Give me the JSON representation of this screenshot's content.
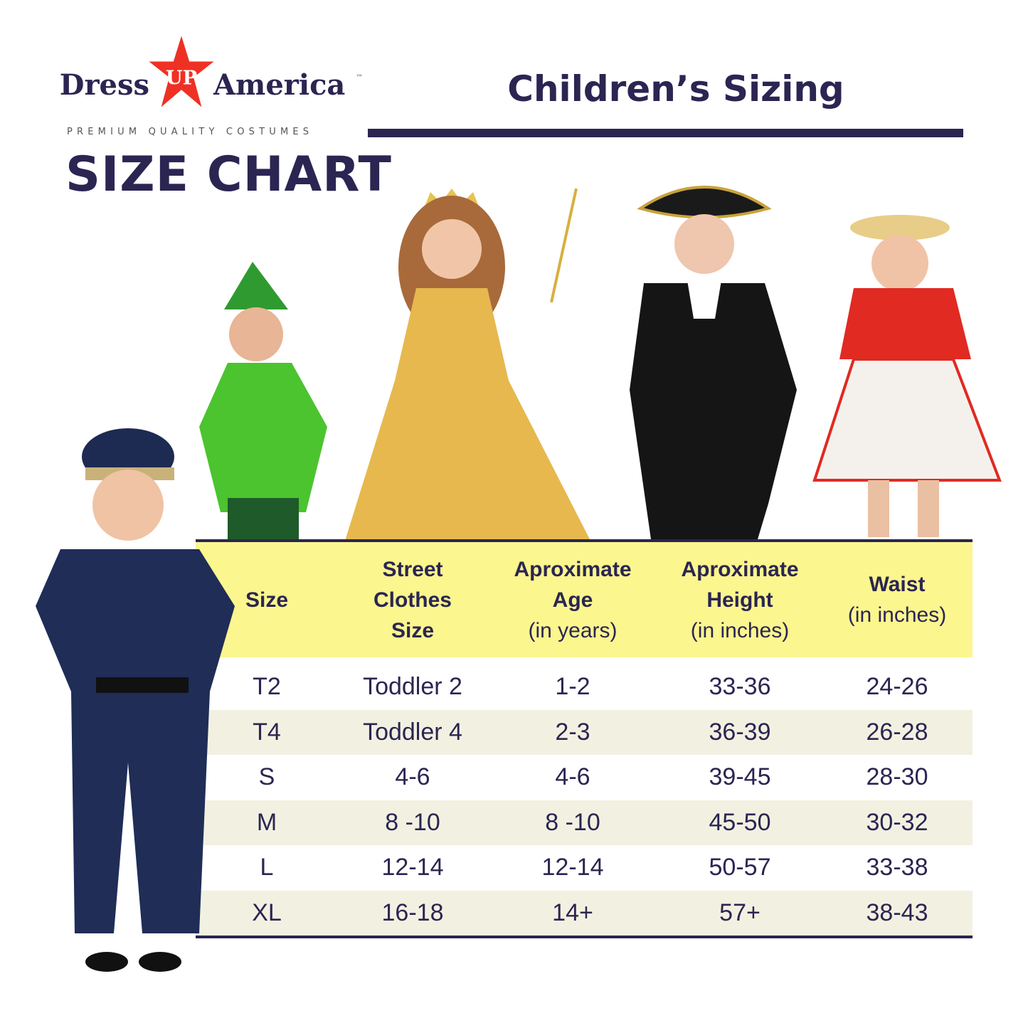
{
  "brand": {
    "word1": "Dress",
    "star_text": "UP",
    "word2": "America",
    "tm": "™",
    "tagline": "PREMIUM QUALITY COSTUMES",
    "colors": {
      "navy": "#2b2552",
      "red": "#ee3124"
    }
  },
  "heading": "SIZE CHART",
  "title": "Children’s Sizing",
  "table": {
    "header_bg": "#fbf68e",
    "columns": [
      {
        "bold": "Size",
        "sub": ""
      },
      {
        "bold": "Street Clothes Size",
        "sub": ""
      },
      {
        "bold": "Aproximate Age",
        "sub": "(in years)"
      },
      {
        "bold": "Aproximate Height",
        "sub": "(in inches)"
      },
      {
        "bold": "Waist",
        "sub": "(in inches)"
      }
    ],
    "rows": [
      [
        "T2",
        "Toddler 2",
        "1-2",
        "33-36",
        "24-26"
      ],
      [
        "T4",
        "Toddler 4",
        "2-3",
        "36-39",
        "26-28"
      ],
      [
        "S",
        "4-6",
        "4-6",
        "39-45",
        "28-30"
      ],
      [
        "M",
        "8 -10",
        "8 -10",
        "45-50",
        "30-32"
      ],
      [
        "L",
        "12-14",
        "12-14",
        "50-57",
        "33-38"
      ],
      [
        "XL",
        "16-18",
        "14+",
        "57+",
        "38-43"
      ]
    ]
  },
  "photos": [
    "police-costume",
    "peter-pan-costume",
    "princess-costume",
    "colonial-costume",
    "cowgirl-costume"
  ]
}
